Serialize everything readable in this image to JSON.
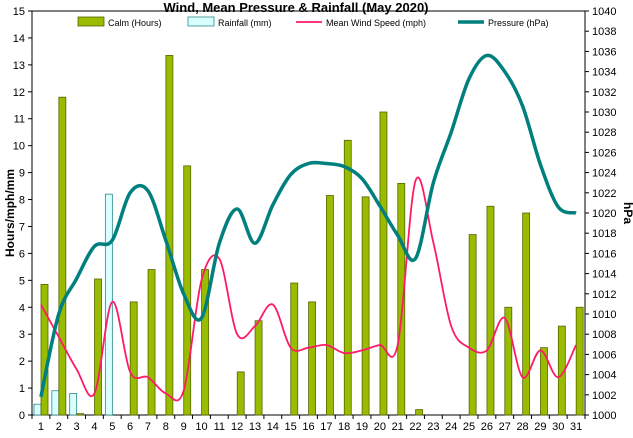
{
  "chart_data": {
    "type": "bar",
    "title": "Wind, Mean Pressure & Rainfall (May 2020)",
    "ylabel": "Hours/mph/mm",
    "y2label": "hPa",
    "ylim": [
      0,
      15
    ],
    "y2lim": [
      1000,
      1040
    ],
    "yticks": [
      "0",
      "1",
      "2",
      "3",
      "4",
      "5",
      "6",
      "7",
      "8",
      "9",
      "10",
      "11",
      "12",
      "13",
      "14",
      "15"
    ],
    "y2ticks": [
      "1000",
      "1002",
      "1004",
      "1006",
      "1008",
      "1010",
      "1012",
      "1014",
      "1016",
      "1018",
      "1020",
      "1022",
      "1024",
      "1026",
      "1028",
      "1030",
      "1032",
      "1034",
      "1036",
      "1038",
      "1040"
    ],
    "categories": [
      "1",
      "2",
      "3",
      "4",
      "5",
      "6",
      "7",
      "8",
      "9",
      "10",
      "11",
      "12",
      "13",
      "14",
      "15",
      "16",
      "17",
      "18",
      "19",
      "20",
      "21",
      "22",
      "23",
      "24",
      "25",
      "26",
      "27",
      "28",
      "29",
      "30",
      "31"
    ],
    "grid": false,
    "legend_position": "top",
    "series": [
      {
        "name": "Calm (Hours)",
        "type": "bar",
        "axis": "left",
        "color": "#99bb00",
        "values": [
          4.85,
          11.8,
          0.05,
          5.05,
          0,
          4.2,
          5.4,
          13.35,
          9.25,
          5.4,
          0,
          1.6,
          3.5,
          0,
          4.9,
          4.2,
          8.15,
          10.2,
          8.1,
          11.25,
          8.6,
          0.2,
          0,
          0,
          6.7,
          7.75,
          4.0,
          7.5,
          2.5,
          3.3,
          4.0
        ]
      },
      {
        "name": "Rainfall (mm)",
        "type": "bar",
        "axis": "left",
        "color": "#d9ffff",
        "values": [
          0.4,
          0.9,
          0.8,
          0,
          8.2,
          0,
          0,
          0,
          0,
          0,
          0,
          0,
          0,
          0,
          0,
          0,
          0,
          0,
          0,
          0,
          0,
          0,
          0,
          0,
          0,
          0,
          0,
          0,
          0,
          0,
          0
        ]
      },
      {
        "name": "Mean Wind Speed (mph)",
        "type": "line",
        "axis": "left",
        "color": "#ff1a66",
        "values": [
          4.1,
          2.9,
          1.7,
          0.8,
          4.2,
          1.6,
          1.4,
          0.8,
          0.9,
          5.0,
          5.8,
          3.0,
          3.3,
          4.1,
          2.5,
          2.5,
          2.6,
          2.3,
          2.4,
          2.6,
          2.6,
          8.7,
          6.4,
          3.3,
          2.5,
          2.4,
          3.6,
          1.4,
          2.4,
          1.4,
          2.6
        ]
      },
      {
        "name": "Pressure (hPa)",
        "type": "line",
        "axis": "right",
        "color": "#007f7f",
        "values": [
          1001.8,
          1010.0,
          1013.5,
          1016.7,
          1017.3,
          1022.0,
          1022.2,
          1017.3,
          1012.0,
          1009.6,
          1017.0,
          1020.4,
          1017.0,
          1020.8,
          1023.8,
          1024.9,
          1024.9,
          1024.6,
          1023.4,
          1020.7,
          1017.8,
          1015.5,
          1023.0,
          1028.0,
          1033.3,
          1035.6,
          1034.0,
          1030.6,
          1024.8,
          1020.6,
          1020.0
        ]
      }
    ]
  }
}
